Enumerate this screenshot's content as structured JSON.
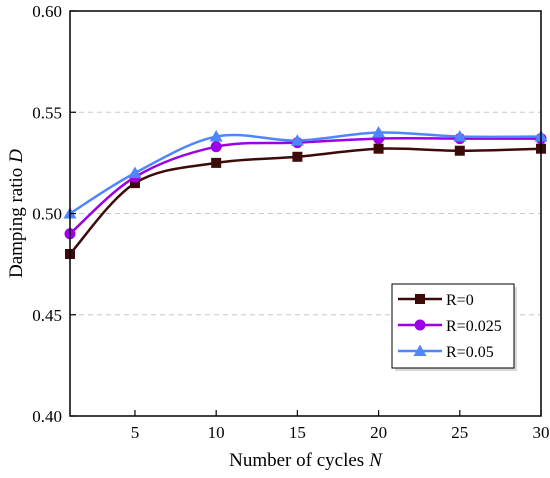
{
  "chart_data": {
    "type": "line",
    "title": "",
    "xlabel": "Number of cycles",
    "xlabel_var": "N",
    "ylabel": "Damping ratio",
    "ylabel_var": "D",
    "x": [
      1,
      5,
      10,
      15,
      20,
      25,
      30
    ],
    "xlim": [
      1,
      30
    ],
    "ylim": [
      0.4,
      0.6
    ],
    "x_ticks": [
      5,
      10,
      15,
      20,
      25,
      30
    ],
    "y_ticks": [
      0.4,
      0.45,
      0.5,
      0.55,
      0.6
    ],
    "x_tick_labels": [
      "5",
      "10",
      "15",
      "20",
      "25",
      "30"
    ],
    "y_tick_labels": [
      "0.40",
      "0.45",
      "0.50",
      "0.55",
      "0.60"
    ],
    "grid": "horizontal dashed",
    "legend_position": "bottom-right",
    "series": [
      {
        "name": "R=0",
        "marker": "square",
        "color": "#3d0a0a",
        "values": [
          0.48,
          0.515,
          0.525,
          0.528,
          0.532,
          0.531,
          0.532
        ]
      },
      {
        "name": "R=0.025",
        "marker": "circle",
        "color": "#9b00e6",
        "values": [
          0.49,
          0.518,
          0.533,
          0.535,
          0.537,
          0.537,
          0.537
        ]
      },
      {
        "name": "R=0.05",
        "marker": "triangle",
        "color": "#4d86ff",
        "values": [
          0.5,
          0.52,
          0.538,
          0.536,
          0.54,
          0.538,
          0.538
        ]
      }
    ]
  }
}
